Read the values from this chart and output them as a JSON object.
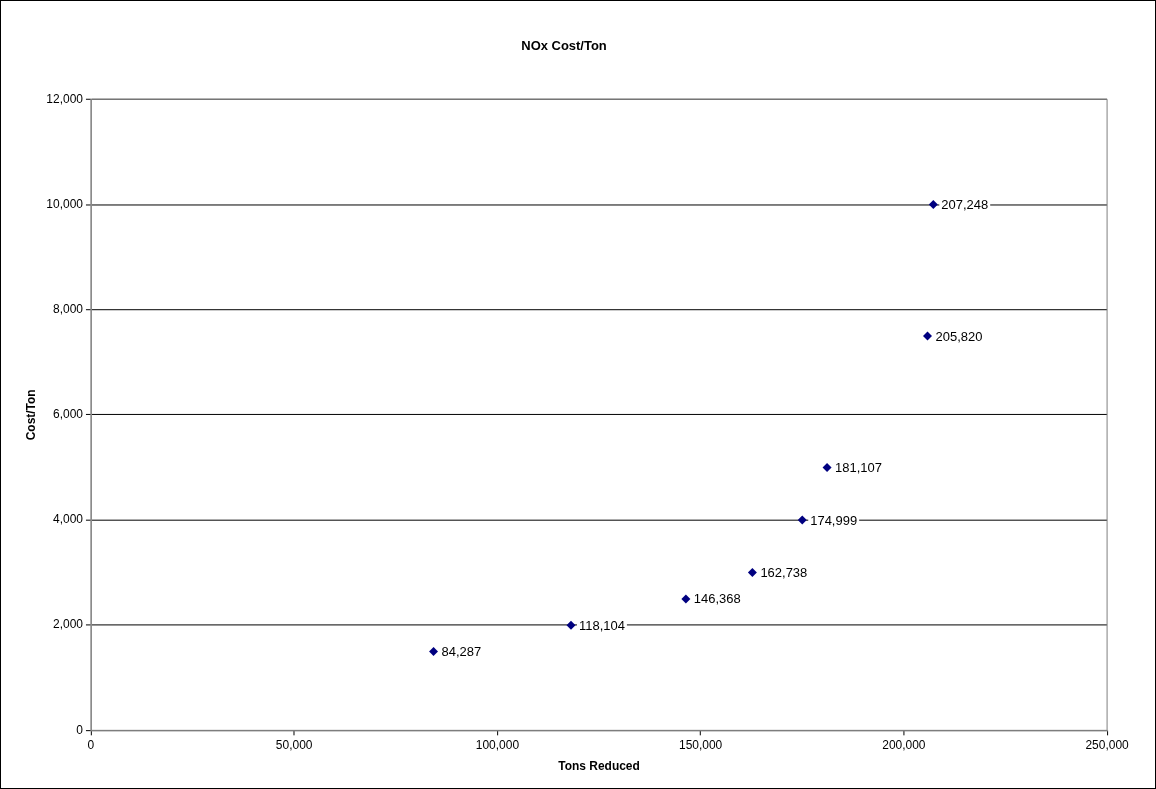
{
  "chart_data": {
    "type": "scatter",
    "title": "NOx Cost/Ton",
    "xlabel": "Tons Reduced",
    "ylabel": "Cost/Ton",
    "x": [
      84287,
      118104,
      146368,
      162738,
      174999,
      181107,
      205820,
      207248
    ],
    "series": [
      {
        "color": "#000080",
        "values": [
          1500,
          2000,
          2500,
          3000,
          4000,
          5000,
          7500,
          10000
        ]
      }
    ],
    "annotations": [
      {
        "text": "84,287",
        "x": 84287,
        "y": 1500
      },
      {
        "text": "118,104",
        "x": 118104,
        "y": 2000
      },
      {
        "text": "146,368",
        "x": 146368,
        "y": 2500
      },
      {
        "text": "162,738",
        "x": 162738,
        "y": 3000
      },
      {
        "text": "174,999",
        "x": 174999,
        "y": 4000
      },
      {
        "text": "181,107",
        "x": 181107,
        "y": 5000
      },
      {
        "text": "205,820",
        "x": 205820,
        "y": 7500
      },
      {
        "text": "207,248",
        "x": 207248,
        "y": 10000
      }
    ],
    "xlim": [
      0,
      250000
    ],
    "xticks": [
      {
        "value": 0,
        "label": "0"
      },
      {
        "value": 50000,
        "label": "50,000"
      },
      {
        "value": 100000,
        "label": "100,000"
      },
      {
        "value": 150000,
        "label": "150,000"
      },
      {
        "value": 200000,
        "label": "200,000"
      },
      {
        "value": 250000,
        "label": "250,000"
      }
    ],
    "ylim": [
      0,
      12000
    ],
    "yticks": [
      {
        "value": 0,
        "label": "0"
      },
      {
        "value": 2000,
        "label": "2,000"
      },
      {
        "value": 4000,
        "label": "4,000"
      },
      {
        "value": 6000,
        "label": "6,000"
      },
      {
        "value": 8000,
        "label": "8,000"
      },
      {
        "value": 10000,
        "label": "10,000"
      },
      {
        "value": 12000,
        "label": "12,000"
      }
    ],
    "grid": "y",
    "legend": false,
    "marker": "diamond"
  }
}
